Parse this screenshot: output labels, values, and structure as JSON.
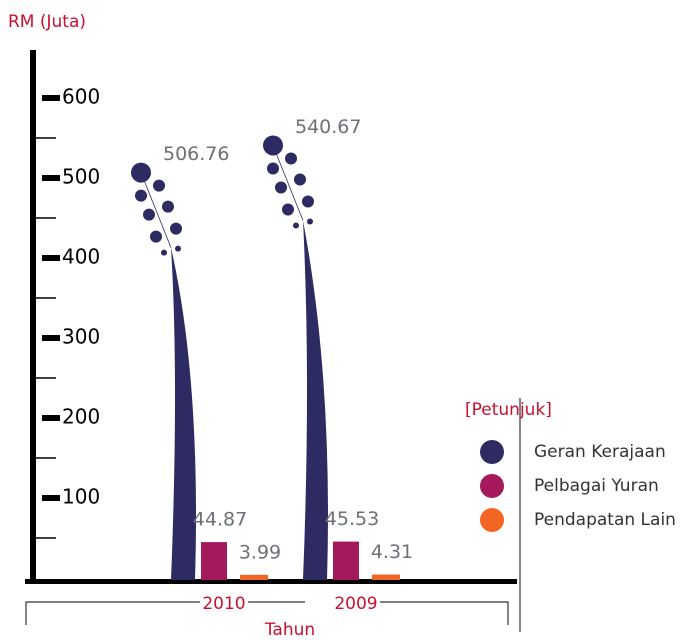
{
  "chart_data": {
    "type": "bar",
    "y_label": "RM (Juta)",
    "x_label": "Tahun",
    "legend_title": "[Petunjuk]",
    "categories": [
      "2010",
      "2009"
    ],
    "series": [
      {
        "name": "Geran Kerajaan",
        "color": "#2e2a62",
        "values": [
          506.76,
          540.67
        ]
      },
      {
        "name": "Pelbagai Yuran",
        "color": "#a3195b",
        "values": [
          44.87,
          45.53
        ]
      },
      {
        "name": "Pendapatan Lain",
        "color": "#f26522",
        "values": [
          3.99,
          4.31
        ]
      }
    ],
    "ylim": [
      0,
      660
    ],
    "yticks": [
      100,
      200,
      300,
      400,
      500,
      600
    ],
    "minor_yticks": [
      50,
      150,
      250,
      350,
      450,
      550
    ]
  }
}
